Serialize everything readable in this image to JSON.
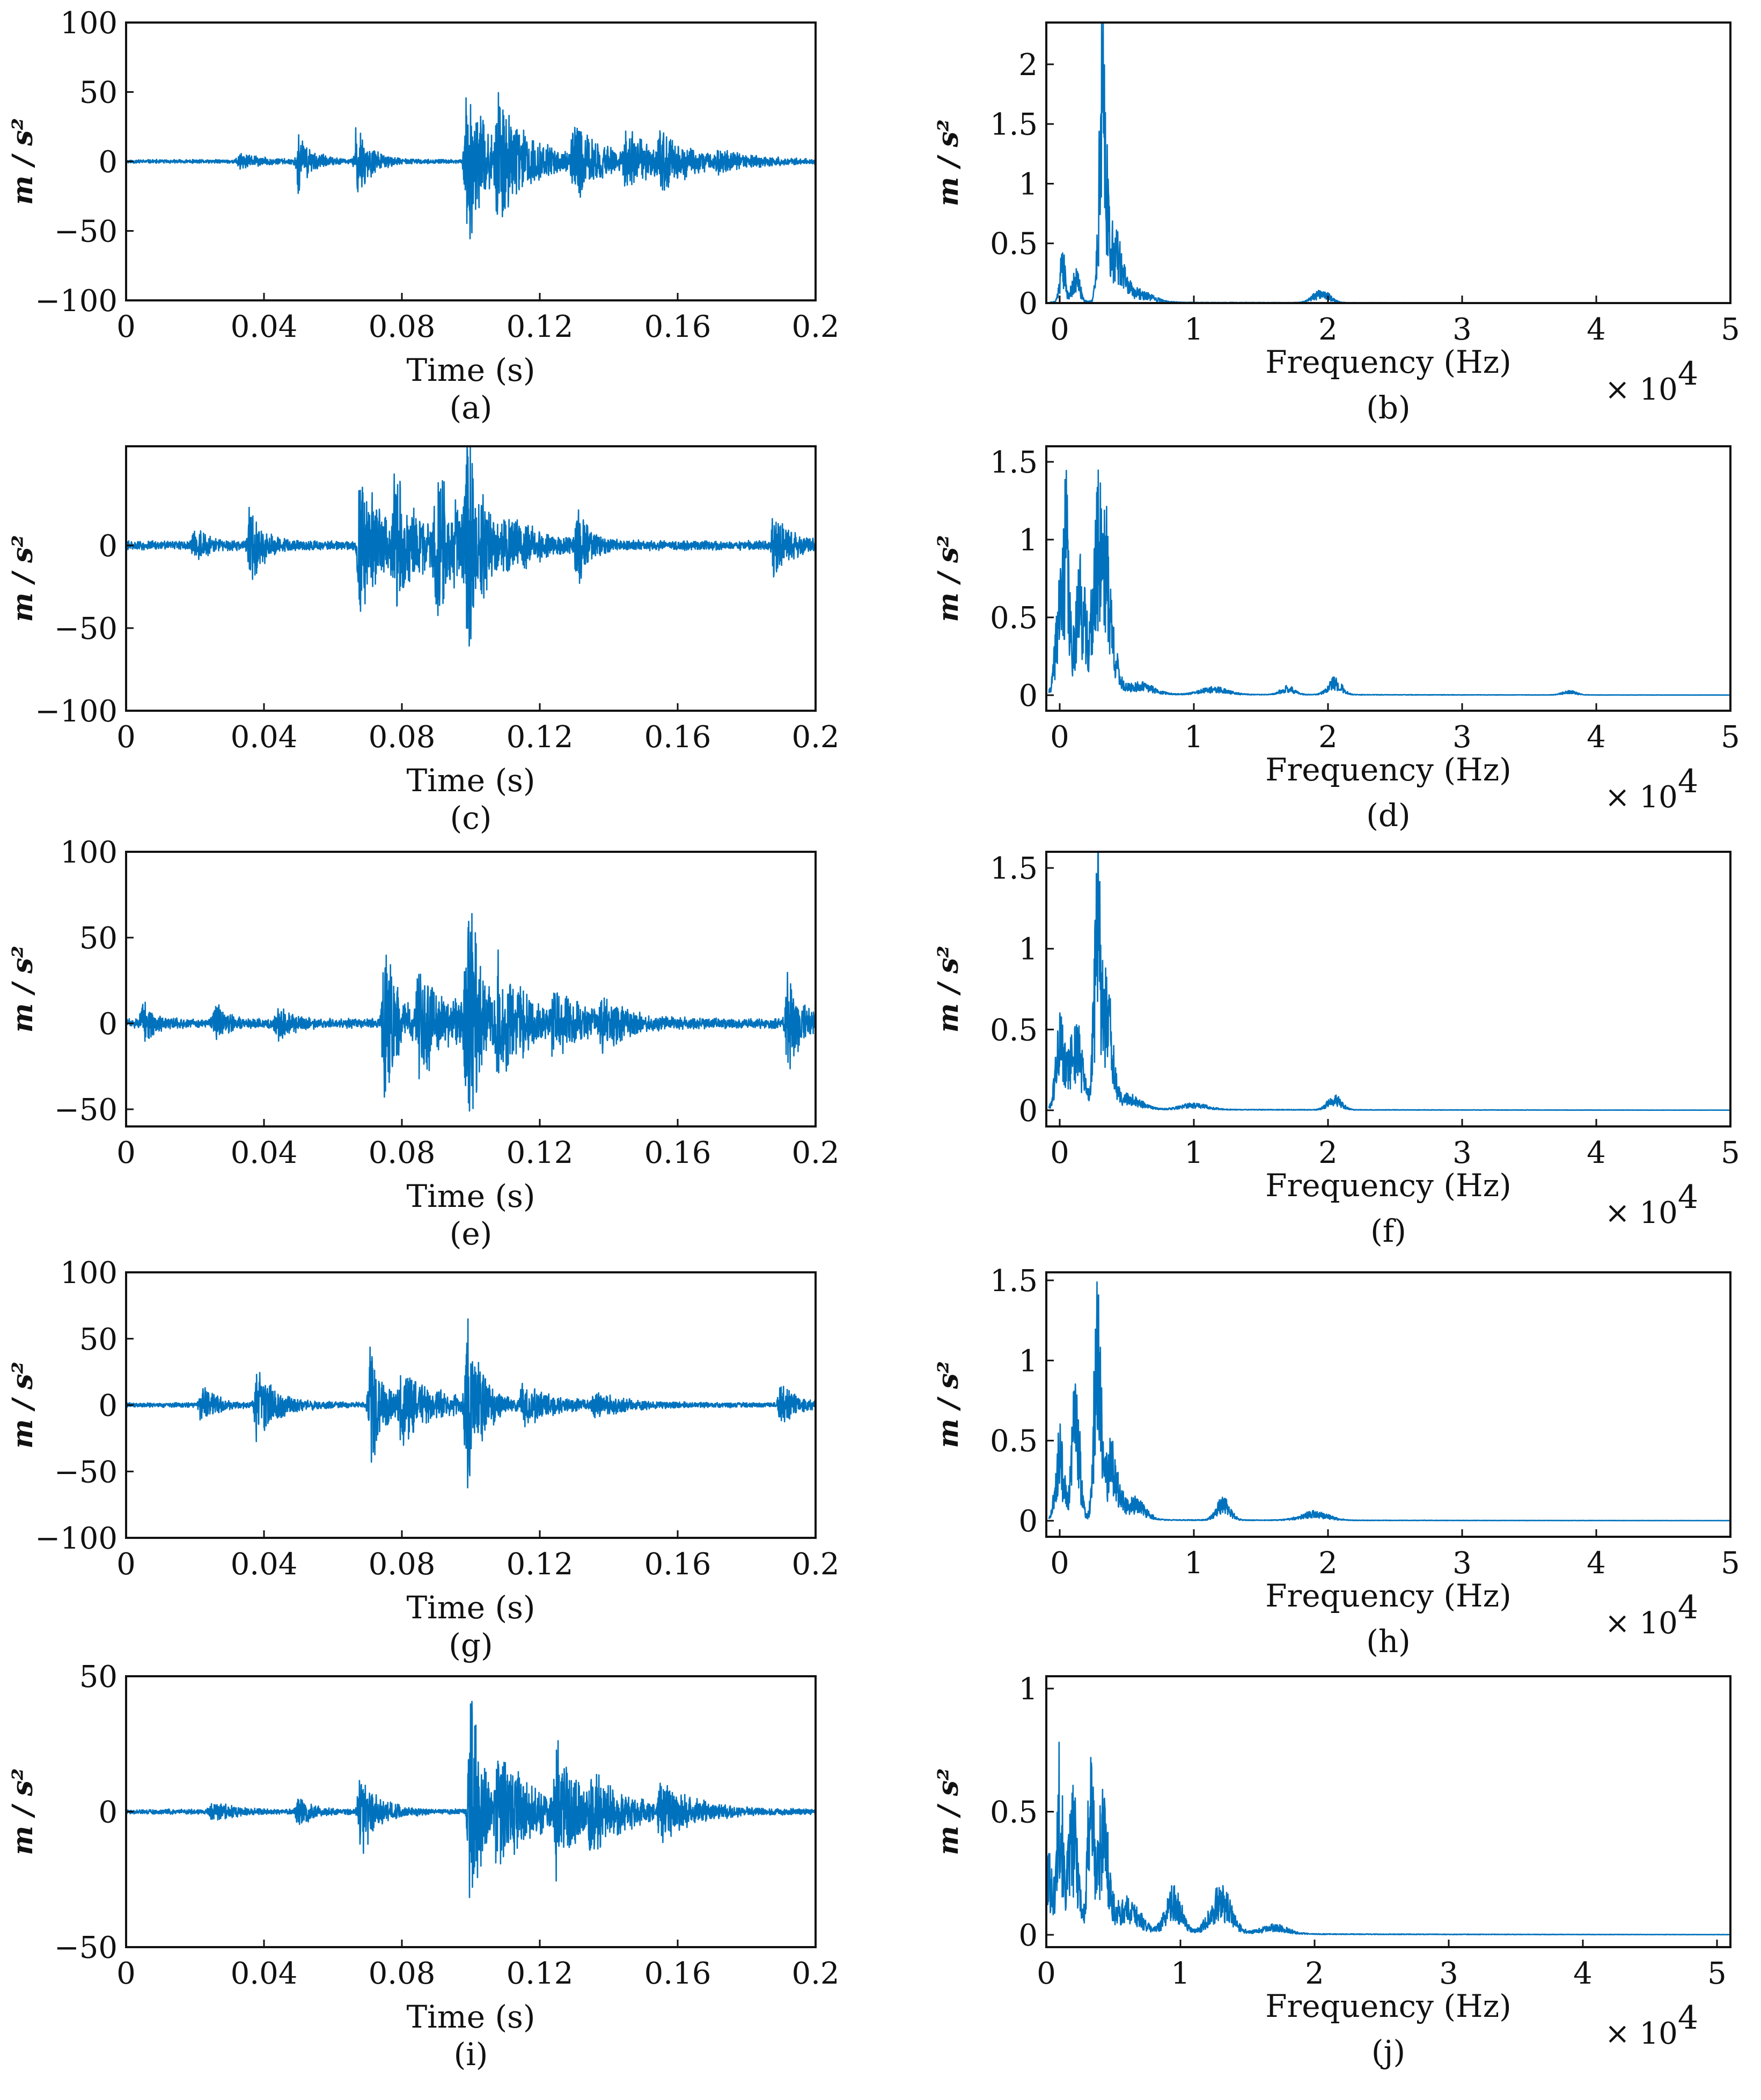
{
  "colors": {
    "line": "#0072BD",
    "axes": "#111111",
    "background": "#ffffff"
  },
  "chart_data": [
    {
      "type": "line",
      "id": "a",
      "caption": "(a)",
      "domain": "time",
      "xlabel": "Time (s)",
      "ylabel": "m / s²",
      "xlim": [
        0,
        0.2
      ],
      "ylim": [
        -100,
        100
      ],
      "xticks": [
        0,
        0.04,
        0.08,
        0.12,
        0.16,
        0.2
      ],
      "xtick_labels": [
        "0",
        "0.04",
        "0.08",
        "0.12",
        "0.16",
        "0.2"
      ],
      "yticks": [
        -100,
        -50,
        0,
        50,
        100
      ],
      "ytick_labels": [
        "−100",
        "−50",
        "0",
        "50",
        "100"
      ],
      "baseline": 1.5,
      "seed": 11,
      "bursts": [
        {
          "t": 0.033,
          "a": 6,
          "w": 0.006
        },
        {
          "t": 0.05,
          "a": 22,
          "w": 0.004
        },
        {
          "t": 0.067,
          "a": 30,
          "w": 0.004
        },
        {
          "t": 0.099,
          "a": 75,
          "w": 0.005
        },
        {
          "t": 0.108,
          "a": 45,
          "w": 0.01
        },
        {
          "t": 0.13,
          "a": 28,
          "w": 0.008
        },
        {
          "t": 0.145,
          "a": 22,
          "w": 0.008
        },
        {
          "t": 0.155,
          "a": 18,
          "w": 0.01
        },
        {
          "t": 0.172,
          "a": 6,
          "w": 0.01
        }
      ]
    },
    {
      "type": "line",
      "id": "b",
      "caption": "(b)",
      "domain": "freq",
      "xlabel": "Frequency (Hz)",
      "ylabel": "m / s²",
      "xlim": [
        -0.1,
        5
      ],
      "ylim": [
        0,
        2.35
      ],
      "xticks": [
        0,
        1,
        2,
        3,
        4,
        5
      ],
      "xtick_labels": [
        "0",
        "1",
        "2",
        "3",
        "4",
        "5"
      ],
      "yticks": [
        0,
        0.5,
        1,
        1.5,
        2
      ],
      "ytick_labels": [
        "0",
        "0.5",
        "1",
        "1.5",
        "2"
      ],
      "multiplier": "× 10",
      "exponent": "4",
      "floor": 0.01,
      "seed": 21,
      "peaks": [
        {
          "f": 0.02,
          "a": 0.5,
          "w": 0.02
        },
        {
          "f": 0.12,
          "a": 0.3,
          "w": 0.03
        },
        {
          "f": 0.32,
          "a": 2.35,
          "w": 0.025
        },
        {
          "f": 0.4,
          "a": 0.6,
          "w": 0.06
        },
        {
          "f": 0.55,
          "a": 0.12,
          "w": 0.12
        },
        {
          "f": 1.95,
          "a": 0.12,
          "w": 0.06
        }
      ]
    },
    {
      "type": "line",
      "id": "c",
      "caption": "(c)",
      "domain": "time",
      "xlabel": "Time (s)",
      "ylabel": "m / s²",
      "xlim": [
        0,
        0.2
      ],
      "ylim": [
        -100,
        60
      ],
      "xticks": [
        0,
        0.04,
        0.08,
        0.12,
        0.16,
        0.2
      ],
      "xtick_labels": [
        "0",
        "0.04",
        "0.08",
        "0.12",
        "0.16",
        "0.2"
      ],
      "yticks": [
        -100,
        -50,
        0
      ],
      "ytick_labels": [
        "−100",
        "−50",
        "0"
      ],
      "baseline": 3,
      "seed": 31,
      "bursts": [
        {
          "t": 0.02,
          "a": 10,
          "w": 0.004
        },
        {
          "t": 0.036,
          "a": 25,
          "w": 0.004
        },
        {
          "t": 0.068,
          "a": 55,
          "w": 0.006
        },
        {
          "t": 0.078,
          "a": 35,
          "w": 0.008
        },
        {
          "t": 0.09,
          "a": 45,
          "w": 0.008
        },
        {
          "t": 0.099,
          "a": 75,
          "w": 0.004
        },
        {
          "t": 0.11,
          "a": 15,
          "w": 0.01
        },
        {
          "t": 0.131,
          "a": 25,
          "w": 0.003
        },
        {
          "t": 0.188,
          "a": 25,
          "w": 0.004
        }
      ]
    },
    {
      "type": "line",
      "id": "d",
      "caption": "(d)",
      "domain": "freq",
      "xlabel": "Frequency (Hz)",
      "ylabel": "m / s²",
      "xlim": [
        -0.1,
        5
      ],
      "ylim": [
        -0.1,
        1.6
      ],
      "xticks": [
        0,
        1,
        2,
        3,
        4,
        5
      ],
      "xtick_labels": [
        "0",
        "1",
        "2",
        "3",
        "4",
        "5"
      ],
      "yticks": [
        0,
        0.5,
        1,
        1.5
      ],
      "ytick_labels": [
        "0",
        "0.5",
        "1",
        "1.5"
      ],
      "multiplier": "× 10",
      "exponent": "4",
      "floor": 0.01,
      "seed": 41,
      "peaks": [
        {
          "f": 0.0,
          "a": 0.8,
          "w": 0.03
        },
        {
          "f": 0.05,
          "a": 1.2,
          "w": 0.02
        },
        {
          "f": 0.15,
          "a": 0.9,
          "w": 0.04
        },
        {
          "f": 0.3,
          "a": 1.2,
          "w": 0.05
        },
        {
          "f": 0.35,
          "a": 0.5,
          "w": 0.06
        },
        {
          "f": 0.6,
          "a": 0.08,
          "w": 0.1
        },
        {
          "f": 1.15,
          "a": 0.05,
          "w": 0.1
        },
        {
          "f": 1.7,
          "a": 0.06,
          "w": 0.05
        },
        {
          "f": 2.05,
          "a": 0.12,
          "w": 0.05
        },
        {
          "f": 3.8,
          "a": 0.03,
          "w": 0.05
        }
      ]
    },
    {
      "type": "line",
      "id": "e",
      "caption": "(e)",
      "domain": "time",
      "xlabel": "Time (s)",
      "ylabel": "m / s²",
      "xlim": [
        0,
        0.2
      ],
      "ylim": [
        -60,
        100
      ],
      "xticks": [
        0,
        0.04,
        0.08,
        0.12,
        0.16,
        0.2
      ],
      "xtick_labels": [
        "0",
        "0.04",
        "0.08",
        "0.12",
        "0.16",
        "0.2"
      ],
      "yticks": [
        -50,
        0,
        50,
        100
      ],
      "ytick_labels": [
        "−50",
        "0",
        "50",
        "100"
      ],
      "baseline": 3,
      "seed": 51,
      "bursts": [
        {
          "t": 0.005,
          "a": 12,
          "w": 0.003
        },
        {
          "t": 0.026,
          "a": 12,
          "w": 0.003
        },
        {
          "t": 0.044,
          "a": 10,
          "w": 0.004
        },
        {
          "t": 0.075,
          "a": 55,
          "w": 0.004
        },
        {
          "t": 0.085,
          "a": 35,
          "w": 0.01
        },
        {
          "t": 0.099,
          "a": 78,
          "w": 0.004
        },
        {
          "t": 0.108,
          "a": 35,
          "w": 0.008
        },
        {
          "t": 0.124,
          "a": 20,
          "w": 0.008
        },
        {
          "t": 0.138,
          "a": 12,
          "w": 0.008
        },
        {
          "t": 0.192,
          "a": 30,
          "w": 0.004
        }
      ]
    },
    {
      "type": "line",
      "id": "f",
      "caption": "(f)",
      "domain": "freq",
      "xlabel": "Frequency (Hz)",
      "ylabel": "m / s²",
      "xlim": [
        -0.1,
        5
      ],
      "ylim": [
        -0.1,
        1.6
      ],
      "xticks": [
        0,
        1,
        2,
        3,
        4,
        5
      ],
      "xtick_labels": [
        "0",
        "1",
        "2",
        "3",
        "4",
        "5"
      ],
      "yticks": [
        0,
        0.5,
        1,
        1.5
      ],
      "ytick_labels": [
        "0",
        "0.5",
        "1",
        "1.5"
      ],
      "multiplier": "× 10",
      "exponent": "4",
      "floor": 0.01,
      "seed": 61,
      "peaks": [
        {
          "f": 0.0,
          "a": 0.6,
          "w": 0.03
        },
        {
          "f": 0.12,
          "a": 0.6,
          "w": 0.05
        },
        {
          "f": 0.28,
          "a": 1.5,
          "w": 0.025
        },
        {
          "f": 0.35,
          "a": 0.8,
          "w": 0.04
        },
        {
          "f": 0.5,
          "a": 0.1,
          "w": 0.1
        },
        {
          "f": 1.0,
          "a": 0.04,
          "w": 0.1
        },
        {
          "f": 2.05,
          "a": 0.1,
          "w": 0.05
        }
      ]
    },
    {
      "type": "line",
      "id": "g",
      "caption": "(g)",
      "domain": "time",
      "xlabel": "Time (s)",
      "ylabel": "m / s²",
      "xlim": [
        0,
        0.2
      ],
      "ylim": [
        -100,
        100
      ],
      "xticks": [
        0,
        0.04,
        0.08,
        0.12,
        0.16,
        0.2
      ],
      "xtick_labels": [
        "0",
        "0.04",
        "0.08",
        "0.12",
        "0.16",
        "0.2"
      ],
      "yticks": [
        -100,
        -50,
        0,
        50,
        100
      ],
      "ytick_labels": [
        "−100",
        "−50",
        "0",
        "50",
        "100"
      ],
      "baseline": 2,
      "seed": 71,
      "bursts": [
        {
          "t": 0.022,
          "a": 18,
          "w": 0.004
        },
        {
          "t": 0.038,
          "a": 30,
          "w": 0.006
        },
        {
          "t": 0.071,
          "a": 50,
          "w": 0.004
        },
        {
          "t": 0.08,
          "a": 30,
          "w": 0.01
        },
        {
          "t": 0.099,
          "a": 75,
          "w": 0.004
        },
        {
          "t": 0.115,
          "a": 15,
          "w": 0.01
        },
        {
          "t": 0.136,
          "a": 10,
          "w": 0.008
        },
        {
          "t": 0.19,
          "a": 20,
          "w": 0.004
        }
      ]
    },
    {
      "type": "line",
      "id": "h",
      "caption": "(h)",
      "domain": "freq",
      "xlabel": "Frequency (Hz)",
      "ylabel": "m / s²",
      "xlim": [
        -0.1,
        5
      ],
      "ylim": [
        -0.1,
        1.55
      ],
      "xticks": [
        0,
        1,
        2,
        3,
        4,
        5
      ],
      "xtick_labels": [
        "0",
        "1",
        "2",
        "3",
        "4",
        "5"
      ],
      "yticks": [
        0,
        0.5,
        1,
        1.5
      ],
      "ytick_labels": [
        "0",
        "0.5",
        "1",
        "1.5"
      ],
      "multiplier": "× 10",
      "exponent": "4",
      "floor": 0.01,
      "seed": 81,
      "peaks": [
        {
          "f": 0.0,
          "a": 0.6,
          "w": 0.03
        },
        {
          "f": 0.12,
          "a": 0.95,
          "w": 0.03
        },
        {
          "f": 0.28,
          "a": 1.5,
          "w": 0.025
        },
        {
          "f": 0.38,
          "a": 0.5,
          "w": 0.05
        },
        {
          "f": 0.55,
          "a": 0.15,
          "w": 0.08
        },
        {
          "f": 1.22,
          "a": 0.15,
          "w": 0.05
        },
        {
          "f": 1.9,
          "a": 0.06,
          "w": 0.1
        }
      ]
    },
    {
      "type": "line",
      "id": "i",
      "caption": "(i)",
      "domain": "time",
      "xlabel": "Time (s)",
      "ylabel": "m / s²",
      "xlim": [
        0,
        0.2
      ],
      "ylim": [
        -50,
        50
      ],
      "xticks": [
        0,
        0.04,
        0.08,
        0.12,
        0.16,
        0.2
      ],
      "xtick_labels": [
        "0",
        "0.04",
        "0.08",
        "0.12",
        "0.16",
        "0.2"
      ],
      "yticks": [
        -50,
        0,
        50
      ],
      "ytick_labels": [
        "−50",
        "0",
        "50"
      ],
      "baseline": 1,
      "seed": 91,
      "bursts": [
        {
          "t": 0.025,
          "a": 4,
          "w": 0.006
        },
        {
          "t": 0.05,
          "a": 6,
          "w": 0.004
        },
        {
          "t": 0.068,
          "a": 18,
          "w": 0.005
        },
        {
          "t": 0.1,
          "a": 48,
          "w": 0.004
        },
        {
          "t": 0.108,
          "a": 25,
          "w": 0.01
        },
        {
          "t": 0.125,
          "a": 25,
          "w": 0.006
        },
        {
          "t": 0.135,
          "a": 15,
          "w": 0.01
        },
        {
          "t": 0.155,
          "a": 10,
          "w": 0.01
        }
      ]
    },
    {
      "type": "line",
      "id": "j",
      "caption": "(j)",
      "domain": "freq",
      "xlabel": "Frequency (Hz)",
      "ylabel": "m / s²",
      "xlim": [
        0,
        5.1
      ],
      "ylim": [
        -0.05,
        1.05
      ],
      "xticks": [
        0,
        1,
        2,
        3,
        4,
        5
      ],
      "xtick_labels": [
        "0",
        "1",
        "2",
        "3",
        "4",
        "5"
      ],
      "yticks": [
        0,
        0.5,
        1
      ],
      "ytick_labels": [
        "0",
        "0.5",
        "1"
      ],
      "multiplier": "× 10",
      "exponent": "4",
      "floor": 0.01,
      "seed": 101,
      "peaks": [
        {
          "f": 0.02,
          "a": 0.35,
          "w": 0.03
        },
        {
          "f": 0.1,
          "a": 0.8,
          "w": 0.02
        },
        {
          "f": 0.2,
          "a": 0.6,
          "w": 0.04
        },
        {
          "f": 0.33,
          "a": 0.85,
          "w": 0.02
        },
        {
          "f": 0.42,
          "a": 0.6,
          "w": 0.04
        },
        {
          "f": 0.6,
          "a": 0.15,
          "w": 0.1
        },
        {
          "f": 0.95,
          "a": 0.2,
          "w": 0.06
        },
        {
          "f": 1.3,
          "a": 0.2,
          "w": 0.08
        },
        {
          "f": 1.7,
          "a": 0.04,
          "w": 0.1
        }
      ]
    }
  ]
}
